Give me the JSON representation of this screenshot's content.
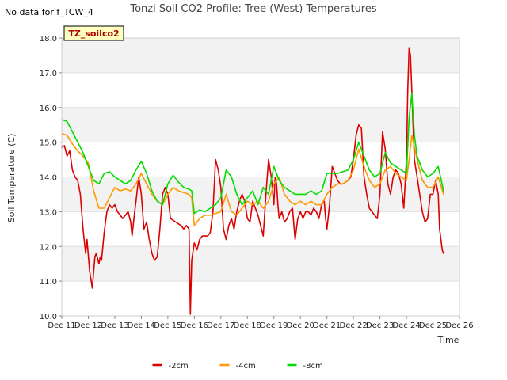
{
  "chart_data": {
    "type": "line",
    "title": "Tonzi Soil CO2 Profile: Tree (West) Temperatures",
    "no_data_note": "No data for f_TCW_4",
    "badge": "TZ_soilco2",
    "xlabel": "Time",
    "ylabel": "Soil Temperature (C)",
    "xlim": [
      11,
      26
    ],
    "ylim": [
      10.0,
      18.0
    ],
    "x_ticks": [
      11,
      12,
      13,
      14,
      15,
      16,
      17,
      18,
      19,
      20,
      21,
      22,
      23,
      24,
      25,
      26
    ],
    "x_tick_labels": [
      "Dec 11",
      "Dec 12",
      "Dec 13",
      "Dec 14",
      "Dec 15",
      "Dec 16",
      "Dec 17",
      "Dec 18",
      "Dec 19",
      "Dec 20",
      "Dec 21",
      "Dec 22",
      "Dec 23",
      "Dec 24",
      "Dec 25",
      "Dec 26"
    ],
    "y_ticks": [
      10.0,
      11.0,
      12.0,
      13.0,
      14.0,
      15.0,
      16.0,
      17.0,
      18.0
    ],
    "y_tick_labels": [
      "10.0",
      "11.0",
      "12.0",
      "13.0",
      "14.0",
      "15.0",
      "16.0",
      "17.0",
      "18.0"
    ],
    "grid": true,
    "legend_position": "bottom-center",
    "series": [
      {
        "name": "-2cm",
        "color": "#dd0000",
        "x": [
          11.0,
          11.1,
          11.2,
          11.3,
          11.4,
          11.5,
          11.6,
          11.7,
          11.8,
          11.9,
          11.95,
          12.05,
          12.15,
          12.25,
          12.3,
          12.4,
          12.45,
          12.5,
          12.6,
          12.7,
          12.8,
          12.9,
          13.0,
          13.1,
          13.3,
          13.5,
          13.6,
          13.65,
          13.75,
          13.8,
          13.9,
          14.0,
          14.1,
          14.2,
          14.3,
          14.4,
          14.5,
          14.6,
          14.7,
          14.8,
          14.9,
          15.0,
          15.1,
          15.3,
          15.5,
          15.6,
          15.7,
          15.8,
          15.85,
          15.9,
          16.0,
          16.1,
          16.2,
          16.3,
          16.4,
          16.5,
          16.6,
          16.7,
          16.8,
          16.9,
          17.0,
          17.1,
          17.2,
          17.3,
          17.4,
          17.5,
          17.6,
          17.7,
          17.8,
          17.9,
          18.0,
          18.1,
          18.2,
          18.4,
          18.6,
          18.7,
          18.8,
          18.9,
          19.0,
          19.05,
          19.1,
          19.15,
          19.2,
          19.3,
          19.4,
          19.5,
          19.6,
          19.7,
          19.8,
          19.9,
          20.0,
          20.1,
          20.2,
          20.3,
          20.4,
          20.5,
          20.6,
          20.7,
          20.8,
          20.9,
          20.95,
          21.0,
          21.1,
          21.2,
          21.3,
          21.4,
          21.5,
          21.6,
          21.8,
          21.9,
          22.0,
          22.1,
          22.2,
          22.3,
          22.4,
          22.5,
          22.6,
          22.7,
          22.8,
          22.9,
          23.0,
          23.1,
          23.2,
          23.3,
          23.4,
          23.5,
          23.6,
          23.7,
          23.8,
          23.9,
          24.0,
          24.05,
          24.1,
          24.15,
          24.2,
          24.25,
          24.3,
          24.4,
          24.5,
          24.6,
          24.7,
          24.8,
          24.9,
          25.0,
          25.1,
          25.2,
          25.25,
          25.3,
          25.35,
          25.4
        ],
        "values": [
          14.85,
          14.9,
          14.6,
          14.75,
          14.2,
          14.0,
          13.9,
          13.5,
          12.5,
          11.8,
          12.2,
          11.3,
          10.8,
          11.7,
          11.8,
          11.5,
          11.7,
          11.6,
          12.4,
          13.0,
          13.2,
          13.1,
          13.2,
          13.0,
          12.8,
          13.0,
          12.7,
          12.3,
          13.0,
          13.3,
          14.0,
          13.5,
          12.5,
          12.7,
          12.2,
          11.8,
          11.6,
          11.7,
          12.5,
          13.5,
          13.7,
          13.5,
          12.8,
          12.7,
          12.6,
          12.5,
          12.6,
          12.5,
          10.05,
          11.6,
          12.1,
          11.9,
          12.2,
          12.3,
          12.3,
          12.3,
          12.4,
          13.0,
          14.5,
          14.2,
          13.7,
          12.5,
          12.2,
          12.6,
          12.8,
          12.5,
          13.0,
          13.3,
          13.5,
          13.3,
          12.8,
          12.7,
          13.3,
          12.9,
          12.3,
          13.5,
          14.5,
          14.0,
          13.2,
          14.0,
          13.8,
          13.2,
          12.8,
          13.0,
          12.7,
          12.8,
          13.0,
          13.1,
          12.2,
          12.8,
          13.0,
          12.8,
          13.0,
          13.0,
          12.9,
          13.1,
          13.0,
          12.8,
          13.2,
          13.3,
          12.8,
          12.5,
          13.2,
          14.3,
          14.1,
          13.9,
          13.8,
          13.8,
          13.9,
          14.0,
          14.5,
          15.2,
          15.5,
          15.4,
          14.0,
          13.5,
          13.1,
          13.0,
          12.9,
          12.8,
          13.5,
          15.3,
          14.8,
          13.8,
          13.5,
          14.0,
          14.2,
          14.1,
          13.8,
          13.1,
          14.5,
          16.5,
          17.7,
          17.5,
          16.5,
          15.5,
          14.5,
          14.0,
          13.5,
          13.0,
          12.7,
          12.8,
          13.5,
          13.5,
          13.9,
          13.5,
          12.5,
          12.2,
          11.9,
          11.8
        ],
        "nominal_note": "values read off the plot; approximate"
      },
      {
        "name": "-4cm",
        "color": "#ff9900",
        "x": [
          11.0,
          11.2,
          11.4,
          11.6,
          11.8,
          12.0,
          12.2,
          12.4,
          12.6,
          12.8,
          13.0,
          13.2,
          13.4,
          13.6,
          13.8,
          14.0,
          14.2,
          14.4,
          14.6,
          14.8,
          15.0,
          15.2,
          15.4,
          15.6,
          15.8,
          15.9,
          16.0,
          16.2,
          16.4,
          16.6,
          16.8,
          17.0,
          17.2,
          17.4,
          17.6,
          17.8,
          18.0,
          18.2,
          18.4,
          18.6,
          18.8,
          19.0,
          19.2,
          19.4,
          19.6,
          19.8,
          20.0,
          20.2,
          20.4,
          20.6,
          20.8,
          21.0,
          21.2,
          21.4,
          21.6,
          21.8,
          22.0,
          22.2,
          22.4,
          22.6,
          22.8,
          23.0,
          23.2,
          23.4,
          23.6,
          23.8,
          24.0,
          24.1,
          24.2,
          24.4,
          24.6,
          24.8,
          25.0,
          25.2,
          25.4
        ],
        "values": [
          15.25,
          15.2,
          14.95,
          14.75,
          14.6,
          14.4,
          13.6,
          13.1,
          13.1,
          13.4,
          13.7,
          13.6,
          13.65,
          13.6,
          13.8,
          14.1,
          13.8,
          13.5,
          13.3,
          13.2,
          13.5,
          13.7,
          13.6,
          13.55,
          13.5,
          13.4,
          12.6,
          12.8,
          12.9,
          12.9,
          12.95,
          13.0,
          13.5,
          13.0,
          12.9,
          13.1,
          13.3,
          13.2,
          13.3,
          13.1,
          13.3,
          13.8,
          14.0,
          13.5,
          13.3,
          13.2,
          13.3,
          13.2,
          13.3,
          13.2,
          13.2,
          13.5,
          13.7,
          13.8,
          13.8,
          13.9,
          14.2,
          14.8,
          14.3,
          13.9,
          13.7,
          13.8,
          14.2,
          14.3,
          14.1,
          14.0,
          13.9,
          14.5,
          15.2,
          14.5,
          13.9,
          13.7,
          13.7,
          14.0,
          13.5
        ],
        "nominal_note": "values read off the plot; approximate"
      },
      {
        "name": "-8cm",
        "color": "#00dd00",
        "x": [
          11.0,
          11.2,
          11.4,
          11.6,
          11.8,
          12.0,
          12.2,
          12.4,
          12.6,
          12.8,
          13.0,
          13.2,
          13.4,
          13.6,
          13.8,
          14.0,
          14.2,
          14.4,
          14.6,
          14.8,
          15.0,
          15.2,
          15.4,
          15.6,
          15.8,
          15.9,
          16.0,
          16.2,
          16.4,
          16.6,
          16.8,
          17.0,
          17.2,
          17.4,
          17.6,
          17.8,
          18.0,
          18.2,
          18.4,
          18.6,
          18.8,
          19.0,
          19.2,
          19.4,
          19.6,
          19.8,
          20.0,
          20.2,
          20.4,
          20.6,
          20.8,
          21.0,
          21.2,
          21.4,
          21.6,
          21.8,
          22.0,
          22.2,
          22.4,
          22.6,
          22.8,
          23.0,
          23.2,
          23.4,
          23.6,
          23.8,
          24.0,
          24.1,
          24.2,
          24.3,
          24.4,
          24.6,
          24.8,
          25.0,
          25.2,
          25.4
        ],
        "values": [
          15.65,
          15.6,
          15.3,
          15.0,
          14.7,
          14.3,
          13.9,
          13.8,
          14.1,
          14.15,
          14.0,
          13.9,
          13.8,
          13.9,
          14.2,
          14.45,
          14.1,
          13.6,
          13.3,
          13.2,
          13.8,
          14.05,
          13.85,
          13.7,
          13.65,
          13.6,
          12.95,
          13.05,
          13.0,
          13.1,
          13.2,
          13.4,
          14.2,
          14.0,
          13.5,
          13.2,
          13.4,
          13.6,
          13.2,
          13.7,
          13.5,
          14.3,
          13.9,
          13.7,
          13.6,
          13.5,
          13.5,
          13.5,
          13.6,
          13.5,
          13.6,
          14.1,
          14.1,
          14.1,
          14.15,
          14.2,
          14.5,
          15.0,
          14.6,
          14.2,
          14.0,
          14.1,
          14.7,
          14.4,
          14.3,
          14.2,
          14.1,
          15.7,
          16.4,
          15.2,
          14.6,
          14.2,
          14.0,
          14.1,
          14.3,
          13.6
        ],
        "nominal_note": "values read off the plot; approximate"
      }
    ]
  }
}
